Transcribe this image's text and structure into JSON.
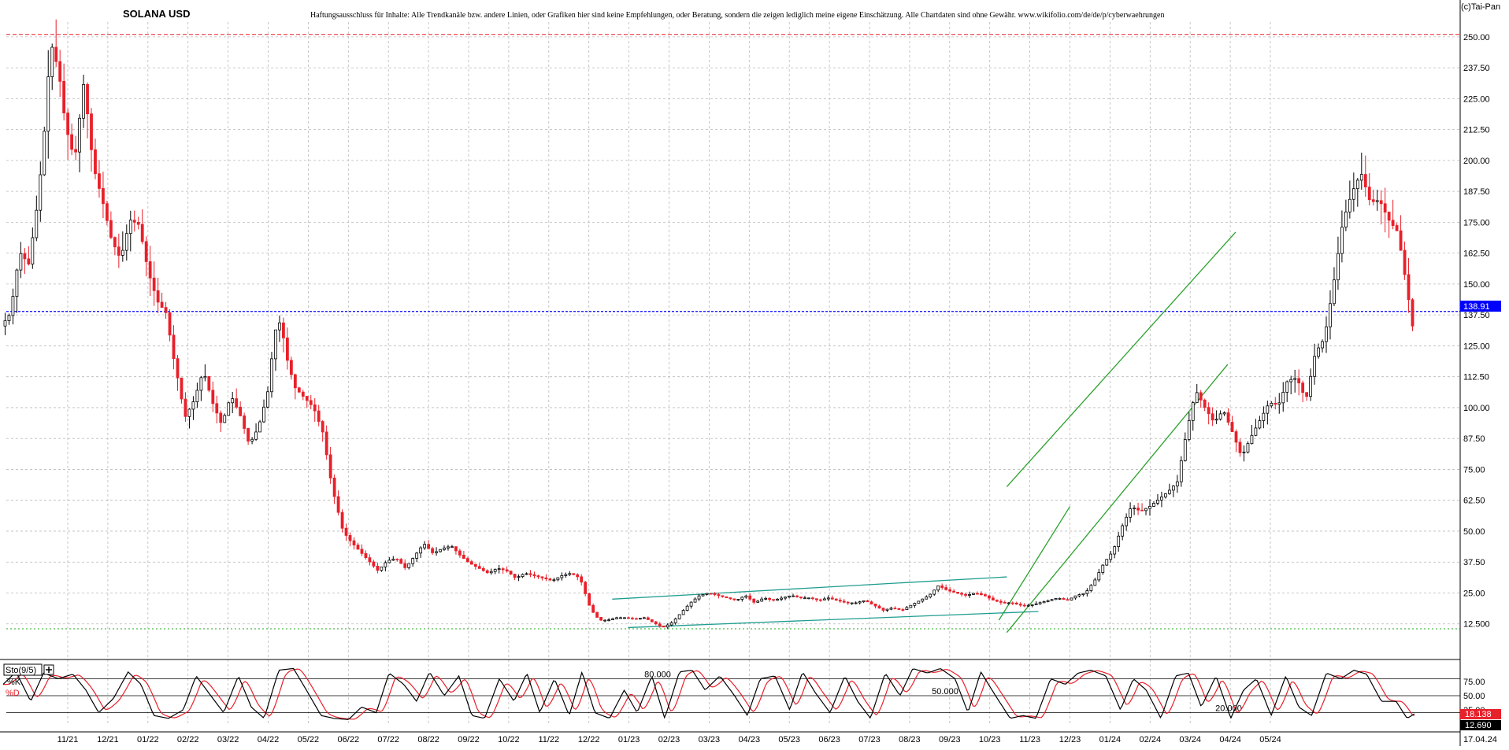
{
  "header": {
    "title": "SOLANA USD",
    "disclaimer": "Haftungsausschluss für Inhalte: Alle Trendkanäle bzw. andere Linien, oder Grafiken hier sind keine Empfehlungen, oder Beratung, sondern die zeigen lediglich meine eigene Einschätzung. Alle Chartdaten sind ohne Gewähr.  www.wikifolio.com/de/de/p/cyberwaehrungen",
    "copyright": "(c)Tai-Pan"
  },
  "colors": {
    "up_candle": "#000000",
    "down_candle": "#e8202a",
    "grid": "#b9b9b9",
    "price_line": "#0000ff",
    "top_line": "#e8202a",
    "bottom_line": "#22aa22",
    "channel_teal": "#1e9c8f",
    "channel_green": "#2aa02a",
    "stoch_k": "#000000",
    "stoch_d": "#e8202a",
    "label_blue": "#0000ff",
    "label_dark": "#000000"
  },
  "chart_data": {
    "type": "candlestick",
    "title": "SOLANA USD",
    "y_axis": {
      "ticks": [
        "250.00",
        "237.50",
        "225.00",
        "212.50",
        "200.00",
        "187.50",
        "175.00",
        "162.50",
        "150.00",
        "137.50",
        "125.00",
        "112.50",
        "100.00",
        "87.50",
        "75.00",
        "62.50",
        "50.00",
        "37.50",
        "25.00",
        "12.500"
      ],
      "range": [
        7,
        256
      ],
      "grid": true,
      "side": "right"
    },
    "x_axis": {
      "ticks": [
        "11/21",
        "12/21",
        "01/22",
        "02/22",
        "03/22",
        "04/22",
        "05/22",
        "06/22",
        "07/22",
        "08/22",
        "09/22",
        "10/22",
        "11/22",
        "12/22",
        "01/23",
        "02/23",
        "03/23",
        "04/23",
        "05/23",
        "06/23",
        "07/23",
        "08/23",
        "09/23",
        "10/23",
        "11/23",
        "12/23",
        "01/24",
        "02/24",
        "03/24",
        "04/24",
        "05/24"
      ],
      "last_label": "17.04.24",
      "grid": true
    },
    "last_price": "138.91",
    "horizontal_lines": [
      {
        "value": 251,
        "style": "dashed",
        "color": "red"
      },
      {
        "value": 10.5,
        "style": "dotted",
        "color": "green"
      }
    ],
    "price_path": [
      [
        0,
        133
      ],
      [
        0.5,
        138
      ],
      [
        1,
        163
      ],
      [
        1.5,
        158
      ],
      [
        2,
        184
      ],
      [
        2.3,
        207
      ],
      [
        2.6,
        238
      ],
      [
        2.8,
        247
      ],
      [
        3.2,
        232
      ],
      [
        3.5,
        214
      ],
      [
        4,
        200
      ],
      [
        4.5,
        232
      ],
      [
        5,
        198
      ],
      [
        5.5,
        184
      ],
      [
        6,
        168
      ],
      [
        6.5,
        160
      ],
      [
        7,
        176
      ],
      [
        7.5,
        174
      ],
      [
        8,
        155
      ],
      [
        8.5,
        143
      ],
      [
        9,
        138
      ],
      [
        9.3,
        123
      ],
      [
        9.6,
        112
      ],
      [
        10,
        96
      ],
      [
        10.5,
        103
      ],
      [
        11,
        115
      ],
      [
        11.5,
        102
      ],
      [
        12,
        93
      ],
      [
        12.5,
        105
      ],
      [
        13,
        97
      ],
      [
        13.5,
        85
      ],
      [
        14,
        92
      ],
      [
        14.5,
        106
      ],
      [
        14.9,
        131
      ],
      [
        15.2,
        135
      ],
      [
        15.6,
        118
      ],
      [
        16,
        108
      ],
      [
        16.5,
        104
      ],
      [
        17,
        100
      ],
      [
        17.5,
        90
      ],
      [
        18,
        68
      ],
      [
        18.3,
        59
      ],
      [
        18.6,
        50
      ],
      [
        19,
        46
      ],
      [
        19.5,
        42
      ],
      [
        20,
        38
      ],
      [
        20.5,
        34
      ],
      [
        21,
        38
      ],
      [
        21.5,
        39
      ],
      [
        22,
        35
      ],
      [
        22.5,
        40
      ],
      [
        23,
        45
      ],
      [
        23.5,
        41
      ],
      [
        24,
        43
      ],
      [
        24.5,
        44
      ],
      [
        25,
        40
      ],
      [
        25.5,
        37
      ],
      [
        26,
        35
      ],
      [
        26.5,
        33
      ],
      [
        27,
        35
      ],
      [
        27.5,
        34
      ],
      [
        28,
        31
      ],
      [
        28.5,
        33
      ],
      [
        29,
        32
      ],
      [
        29.5,
        31
      ],
      [
        30,
        30
      ],
      [
        30.5,
        32
      ],
      [
        31,
        33
      ],
      [
        31.5,
        31
      ],
      [
        32,
        20
      ],
      [
        32.3,
        16
      ],
      [
        32.6,
        14
      ],
      [
        33,
        14
      ],
      [
        33.5,
        15
      ],
      [
        34,
        15
      ],
      [
        34.5,
        14.5
      ],
      [
        35,
        15
      ],
      [
        35.5,
        13
      ],
      [
        36,
        11
      ],
      [
        36.5,
        13
      ],
      [
        37,
        17
      ],
      [
        37.5,
        21
      ],
      [
        38,
        24
      ],
      [
        38.5,
        25
      ],
      [
        39,
        24
      ],
      [
        39.5,
        23
      ],
      [
        40,
        22
      ],
      [
        40.5,
        24
      ],
      [
        41,
        21
      ],
      [
        41.5,
        23
      ],
      [
        42,
        22
      ],
      [
        42.5,
        23
      ],
      [
        43,
        24
      ],
      [
        43.5,
        23
      ],
      [
        44,
        23
      ],
      [
        44.5,
        22
      ],
      [
        45,
        23
      ],
      [
        45.5,
        22
      ],
      [
        46,
        21
      ],
      [
        46.5,
        21
      ],
      [
        47,
        22
      ],
      [
        47.5,
        20
      ],
      [
        48,
        18
      ],
      [
        48.5,
        19
      ],
      [
        49,
        18
      ],
      [
        49.5,
        20
      ],
      [
        50,
        22
      ],
      [
        50.5,
        24
      ],
      [
        51,
        28
      ],
      [
        51.5,
        26
      ],
      [
        52,
        25
      ],
      [
        52.5,
        24
      ],
      [
        53,
        25
      ],
      [
        53.5,
        24
      ],
      [
        54,
        22
      ],
      [
        54.5,
        21
      ],
      [
        55,
        21
      ],
      [
        55.5,
        20
      ],
      [
        56,
        20
      ],
      [
        56.5,
        21
      ],
      [
        57,
        22
      ],
      [
        57.5,
        23
      ],
      [
        58,
        22
      ],
      [
        58.5,
        24
      ],
      [
        59,
        25
      ],
      [
        59.5,
        30
      ],
      [
        60,
        37
      ],
      [
        60.5,
        42
      ],
      [
        61,
        52
      ],
      [
        61.5,
        60
      ],
      [
        62,
        58
      ],
      [
        62.5,
        60
      ],
      [
        63,
        63
      ],
      [
        63.5,
        66
      ],
      [
        64,
        70
      ],
      [
        64.5,
        90
      ],
      [
        65,
        107
      ],
      [
        65.5,
        100
      ],
      [
        66,
        94
      ],
      [
        66.5,
        99
      ],
      [
        67,
        90
      ],
      [
        67.5,
        80
      ],
      [
        68,
        88
      ],
      [
        68.5,
        95
      ],
      [
        69,
        102
      ],
      [
        69.5,
        101
      ],
      [
        70,
        111
      ],
      [
        70.5,
        112
      ],
      [
        71,
        103
      ],
      [
        71.5,
        122
      ],
      [
        72,
        128
      ],
      [
        72.5,
        150
      ],
      [
        73,
        175
      ],
      [
        73.5,
        187
      ],
      [
        74,
        195
      ],
      [
        74.5,
        183
      ],
      [
        75,
        184
      ],
      [
        75.5,
        176
      ],
      [
        76,
        171
      ],
      [
        76.5,
        148
      ],
      [
        76.8,
        133
      ]
    ],
    "trend_lines": [
      {
        "name": "",
        "from": [
          34.5,
          22.5
        ],
        "to": [
          59.5,
          31.5
        ],
        "color": "teal"
      },
      {
        "name": "",
        "from": [
          35.5,
          11
        ],
        "to": [
          61.5,
          17.5
        ],
        "color": "teal"
      },
      {
        "name": "",
        "from": [
          59.5,
          68
        ],
        "to": [
          74,
          171
        ],
        "color": "green"
      },
      {
        "name": "",
        "from": [
          59.5,
          9
        ],
        "to": [
          73.5,
          117.5
        ],
        "color": "green"
      },
      {
        "name": "",
        "from": [
          59,
          14
        ],
        "to": [
          63.5,
          60
        ],
        "color": "green"
      }
    ],
    "stochastic": {
      "label": "Sto(9/5)",
      "legend_k": "%K",
      "legend_d": "%D",
      "levels": [
        {
          "value": 80,
          "label": "80.000"
        },
        {
          "value": 50,
          "label": "50.000"
        },
        {
          "value": 20,
          "label": "20.000"
        }
      ],
      "y_ticks": [
        "75.00",
        "50.00",
        "25.00"
      ],
      "last_k": "18.138",
      "last_d": "12.690",
      "k_path": [
        [
          0,
          70
        ],
        [
          0.7,
          92
        ],
        [
          1.5,
          40
        ],
        [
          2.2,
          90
        ],
        [
          3,
          80
        ],
        [
          3.8,
          88
        ],
        [
          4.5,
          60
        ],
        [
          5.2,
          20
        ],
        [
          6,
          45
        ],
        [
          6.8,
          92
        ],
        [
          7.5,
          70
        ],
        [
          8.2,
          15
        ],
        [
          9,
          10
        ],
        [
          9.8,
          25
        ],
        [
          10.5,
          85
        ],
        [
          11.3,
          50
        ],
        [
          12,
          20
        ],
        [
          12.8,
          85
        ],
        [
          13.5,
          30
        ],
        [
          14.2,
          10
        ],
        [
          15,
          95
        ],
        [
          15.8,
          98
        ],
        [
          16.5,
          60
        ],
        [
          17.3,
          15
        ],
        [
          18,
          10
        ],
        [
          18.8,
          8
        ],
        [
          19.5,
          30
        ],
        [
          20.3,
          20
        ],
        [
          21,
          90
        ],
        [
          21.8,
          70
        ],
        [
          22.5,
          40
        ],
        [
          23.2,
          92
        ],
        [
          24,
          50
        ],
        [
          24.8,
          85
        ],
        [
          25.5,
          15
        ],
        [
          26.2,
          10
        ],
        [
          27,
          80
        ],
        [
          27.8,
          40
        ],
        [
          28.5,
          90
        ],
        [
          29.2,
          20
        ],
        [
          30,
          80
        ],
        [
          30.8,
          15
        ],
        [
          31.5,
          92
        ],
        [
          32.2,
          20
        ],
        [
          33,
          10
        ],
        [
          33.8,
          60
        ],
        [
          34.5,
          20
        ],
        [
          35.3,
          85
        ],
        [
          36,
          10
        ],
        [
          36.8,
          92
        ],
        [
          37.5,
          95
        ],
        [
          38.2,
          60
        ],
        [
          39,
          85
        ],
        [
          39.8,
          50
        ],
        [
          40.5,
          15
        ],
        [
          41.2,
          80
        ],
        [
          42,
          85
        ],
        [
          42.8,
          25
        ],
        [
          43.5,
          92
        ],
        [
          44.2,
          55
        ],
        [
          45,
          20
        ],
        [
          45.8,
          85
        ],
        [
          46.5,
          40
        ],
        [
          47.2,
          10
        ],
        [
          48,
          90
        ],
        [
          48.8,
          50
        ],
        [
          49.5,
          98
        ],
        [
          50.3,
          90
        ],
        [
          51,
          98
        ],
        [
          51.8,
          80
        ],
        [
          52.5,
          20
        ],
        [
          53.2,
          92
        ],
        [
          54,
          50
        ],
        [
          54.8,
          10
        ],
        [
          55.5,
          15
        ],
        [
          56.2,
          10
        ],
        [
          57,
          80
        ],
        [
          57.8,
          70
        ],
        [
          58.5,
          90
        ],
        [
          59.2,
          95
        ],
        [
          60,
          85
        ],
        [
          60.8,
          25
        ],
        [
          61.5,
          80
        ],
        [
          62.2,
          60
        ],
        [
          63,
          10
        ],
        [
          63.8,
          85
        ],
        [
          64.5,
          90
        ],
        [
          65.2,
          30
        ],
        [
          66,
          85
        ],
        [
          66.8,
          10
        ],
        [
          67.5,
          60
        ],
        [
          68.2,
          80
        ],
        [
          69,
          15
        ],
        [
          69.8,
          85
        ],
        [
          70.5,
          30
        ],
        [
          71.2,
          15
        ],
        [
          72,
          90
        ],
        [
          72.8,
          80
        ],
        [
          73.5,
          95
        ],
        [
          74.2,
          88
        ],
        [
          75,
          40
        ],
        [
          75.8,
          40
        ],
        [
          76.4,
          10
        ],
        [
          76.8,
          18
        ]
      ]
    }
  }
}
